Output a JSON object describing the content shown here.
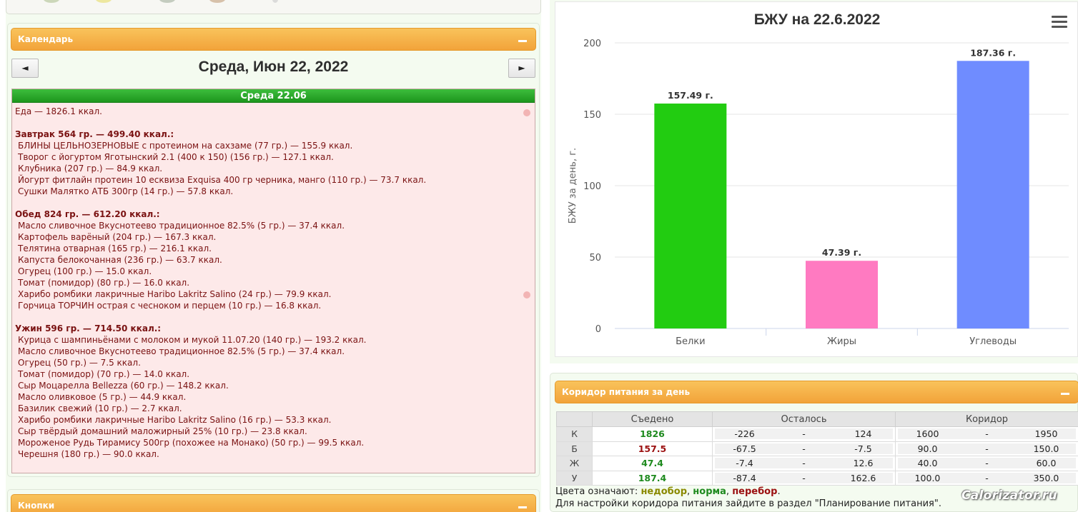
{
  "calendar": {
    "header": "Календарь",
    "prev": "◄",
    "next": "►",
    "date_title": "Среда, Июн 22, 2022"
  },
  "day": {
    "bar": "Среда 22.06",
    "food_line": "Еда — 1826.1 ккал.",
    "meals": [
      {
        "title": "Завтрак 564 гр. — 499.40 ккал.:",
        "items": [
          "БЛИНЫ ЦЕЛЬНОЗЕРНОВЫЕ с протеином на сахзаме (77 гр.) — 155.9 ккал.",
          "Творог с йогуртом Яготынский 2.1 (400 к 150) (156 гр.) — 127.1 ккал.",
          "Клубника (207 гр.) — 84.9 ккал.",
          "Йогурт фитлайн протеин 10 есквиза Exquisa 400 гр черника, манго (110 гр.) — 73.7 ккал.",
          "Сушки Малятко АТБ 300гр (14 гр.) — 57.8 ккал."
        ]
      },
      {
        "title": "Обед 824 гр. — 612.20 ккал.:",
        "items": [
          "Масло сливочное Вкуснотеево традиционное 82.5% (5 гр.) — 37.4 ккал.",
          "Картофель варёный (204 гр.) — 167.3 ккал.",
          "Телятина отварная (165 гр.) — 216.1 ккал.",
          "Капуста белокочанная (236 гр.) — 63.7 ккал.",
          "Огурец (100 гр.) — 15.0 ккал.",
          "Томат (помидор) (80 гр.) — 16.0 ккал.",
          "Харибо ромбики лакричные Haribo Lakritz Salino (24 гр.) — 79.9 ккал.",
          "Горчица ТОРЧИН острая с чесноком и перцем (10 гр.) — 16.8 ккал."
        ]
      },
      {
        "title": "Ужин 596 гр. — 714.50 ккал.:",
        "items": [
          "Курица с шампиньёнами с молоком и мукой 11.07.20 (140 гр.) — 193.2 ккал.",
          "Масло сливочное Вкуснотеево традиционное 82.5% (5 гр.) — 37.4 ккал.",
          "Огурец (50 гр.) — 7.5 ккал.",
          "Томат (помидор) (70 гр.) — 14.0 ккал.",
          "Сыр Моцарелла Bellezza (60 гр.) — 148.2 ккал.",
          "Масло оливковое (5 гр.) — 44.9 ккал.",
          "Базилик свежий (10 гр.) — 2.7 ккал.",
          "Харибо ромбики лакричные Haribo Lakritz Salino (16 гр.) — 53.3 ккал.",
          "Сыр твёрдый домашний маложирный 25% (10 гр.) — 23.8 ккал.",
          "Мороженое Рудь Тирамису 500гр (похожее на Монако) (50 гр.) — 99.5 ккал.",
          "Черешня (180 гр.) — 90.0 ккал."
        ]
      }
    ]
  },
  "buttons_panel": {
    "header": "Кнопки"
  },
  "chart_data": {
    "type": "bar",
    "title": "БЖУ на 22.6.2022",
    "ylabel": "БЖУ за день, г.",
    "xlabel": "",
    "categories": [
      "Белки",
      "Жиры",
      "Углеводы"
    ],
    "values": [
      157.49,
      47.39,
      187.36
    ],
    "data_labels": [
      "157.49 г.",
      "47.39 г.",
      "187.36 г."
    ],
    "colors": [
      "#22cc11",
      "#ff7ac1",
      "#6f8cff"
    ],
    "ylim": [
      0,
      200
    ],
    "yticks": [
      "0",
      "50",
      "100",
      "150",
      "200"
    ],
    "grid": true,
    "legend": "none"
  },
  "corridor": {
    "header": "Коридор питания за день",
    "columns": [
      "Съедено",
      "Осталось",
      "Коридор"
    ],
    "rows": [
      {
        "label": "К",
        "eaten": "1826",
        "status": "ok",
        "left_min": "-226",
        "left_max": "124",
        "cor_min": "1600",
        "cor_max": "1950"
      },
      {
        "label": "Б",
        "eaten": "157.5",
        "status": "over",
        "left_min": "-67.5",
        "left_max": "-7.5",
        "cor_min": "90.0",
        "cor_max": "150.0"
      },
      {
        "label": "Ж",
        "eaten": "47.4",
        "status": "ok",
        "left_min": "-7.4",
        "left_max": "12.6",
        "cor_min": "40.0",
        "cor_max": "60.0"
      },
      {
        "label": "У",
        "eaten": "187.4",
        "status": "ok",
        "left_min": "-87.4",
        "left_max": "162.6",
        "cor_min": "100.0",
        "cor_max": "350.0"
      }
    ],
    "dash": "-",
    "legend_prefix": "Цвета означают:",
    "legend_under": "недобор",
    "legend_ok": "норма",
    "legend_over": "перебор",
    "sep": ",",
    "legend_end": ".",
    "hint": "Для настройки коридора питания зайдите в раздел \"Планирование питания\"."
  },
  "watermark": "Calorizator.ru"
}
